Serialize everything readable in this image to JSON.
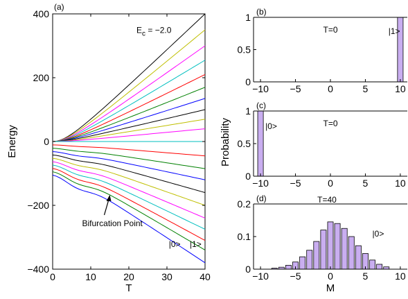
{
  "panels": [
    {
      "panel": "(a)",
      "type": "line",
      "annotation": "E_c = -2.0",
      "annotation_parts": {
        "E": "E",
        "sub": "c",
        "rest": " = −2.0"
      },
      "xlabel": "T",
      "ylabel": "Energy",
      "xlim": [
        0,
        40
      ],
      "ylim": [
        -400,
        400
      ],
      "xticks": [
        "0",
        "10",
        "20",
        "30",
        "40"
      ],
      "yticks": [
        "−400",
        "−200",
        "0",
        "200",
        "400"
      ],
      "yticks_values": [
        -400,
        -200,
        0,
        200,
        400
      ],
      "xticks_values": [
        0,
        10,
        20,
        30,
        40
      ],
      "callout": "Bifurcation Point",
      "callout_target": {
        "x": 15,
        "y": -165
      },
      "state_labels": [
        "|0>",
        "|1>"
      ],
      "curve_count": 21,
      "curve_end_values_at_T40": [
        400,
        350,
        300,
        255,
        210,
        170,
        135,
        100,
        70,
        40,
        0,
        -45,
        -85,
        -120,
        -160,
        -200,
        -240,
        -275,
        -310,
        -340,
        -380
      ],
      "curve_start_values_at_T0": [
        0,
        0,
        0,
        0,
        0,
        0,
        0,
        0,
        0,
        0,
        0,
        -10,
        -20,
        -30,
        -40,
        -50,
        -60,
        -70,
        -80,
        -90,
        -100
      ],
      "colors": [
        "#000000",
        "#bfbf00",
        "#ff00ff",
        "#00bfbf",
        "#ff0000",
        "#008000",
        "#0000ff"
      ]
    },
    {
      "panel": "(b)",
      "type": "bar",
      "label": "T=0",
      "state_label": "|1>",
      "xlim": [
        -11,
        11
      ],
      "ylim": [
        0,
        1
      ],
      "xticks": [
        "−10",
        "−5",
        "0",
        "5",
        "10"
      ],
      "xticks_values": [
        -10,
        -5,
        0,
        5,
        10
      ],
      "yticks": [
        "0",
        "0.5",
        "1"
      ],
      "yticks_values": [
        0,
        0.5,
        1
      ],
      "x": [
        10
      ],
      "values": [
        1.0
      ]
    },
    {
      "panel": "(c)",
      "type": "bar",
      "label": "T=0",
      "state_label": "|0>",
      "xlim": [
        -11,
        11
      ],
      "ylim": [
        0,
        1
      ],
      "xticks": [
        "−10",
        "−5",
        "0",
        "5",
        "10"
      ],
      "xticks_values": [
        -10,
        -5,
        0,
        5,
        10
      ],
      "yticks": [
        "0",
        "0.5",
        "1"
      ],
      "yticks_values": [
        0,
        0.5,
        1
      ],
      "x": [
        -10
      ],
      "values": [
        1.0
      ]
    },
    {
      "panel": "(d)",
      "type": "bar",
      "label": "T=40",
      "state_label": "|0>",
      "xlabel": "M",
      "xlim": [
        -11,
        11
      ],
      "ylim": [
        0,
        0.2
      ],
      "xticks": [
        "−10",
        "−5",
        "0",
        "5",
        "10"
      ],
      "xticks_values": [
        -10,
        -5,
        0,
        5,
        10
      ],
      "yticks": [
        "0",
        "0.1",
        "0.2"
      ],
      "yticks_values": [
        0,
        0.1,
        0.2
      ],
      "x": [
        -8,
        -7,
        -6,
        -5,
        -4,
        -3,
        -2,
        -1,
        0,
        1,
        2,
        3,
        4,
        5,
        6,
        7,
        8
      ],
      "values": [
        0.003,
        0.006,
        0.012,
        0.022,
        0.038,
        0.058,
        0.085,
        0.12,
        0.145,
        0.14,
        0.125,
        0.1,
        0.072,
        0.048,
        0.028,
        0.015,
        0.007
      ]
    }
  ],
  "shared_ylabel": "Probability",
  "bar_color": "#c9aef0"
}
